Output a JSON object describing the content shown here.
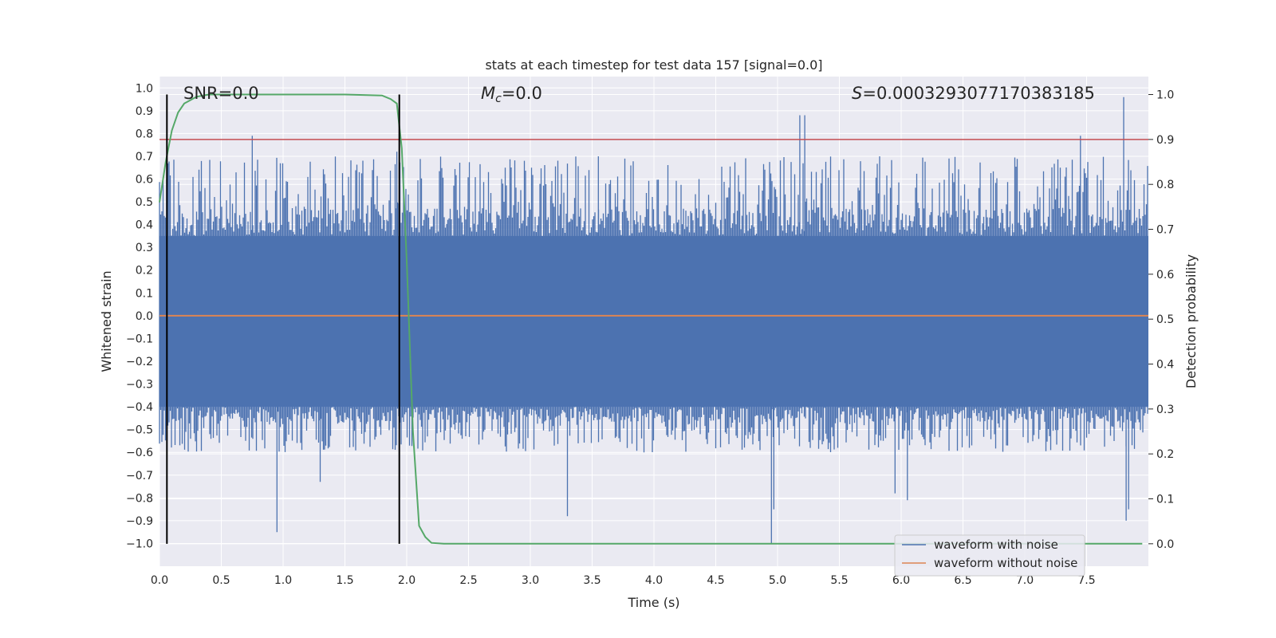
{
  "chart_data": {
    "type": "line",
    "title": "stats at each timestep for test data 157 [signal=0.0]",
    "xlabel": "Time (s)",
    "ylabel": "Whitened strain",
    "y2label": "Detection probability",
    "xlim": [
      0.0,
      8.0
    ],
    "ylim": [
      -1.1,
      1.05
    ],
    "y2lim": [
      -0.05,
      1.04
    ],
    "xticks": [
      "0.0",
      "0.5",
      "1.0",
      "1.5",
      "2.0",
      "2.5",
      "3.0",
      "3.5",
      "4.0",
      "4.5",
      "5.0",
      "5.5",
      "6.0",
      "6.5",
      "7.0",
      "7.5"
    ],
    "yticks": [
      "1.0",
      "0.9",
      "0.8",
      "0.7",
      "0.6",
      "0.5",
      "0.4",
      "0.3",
      "0.2",
      "0.1",
      "0.0",
      "−0.1",
      "−0.2",
      "−0.3",
      "−0.4",
      "−0.5",
      "−0.6",
      "−0.7",
      "−0.8",
      "−0.9",
      "−1.0"
    ],
    "y2ticks": [
      "1.0",
      "0.9",
      "0.8",
      "0.7",
      "0.6",
      "0.5",
      "0.4",
      "0.3",
      "0.2",
      "0.1",
      "0.0"
    ],
    "grid": true,
    "annotations": {
      "snr_label": "SNR=0.0",
      "mc_symbol": "M",
      "mc_sub": "c",
      "mc_value": "=0.0",
      "s_symbol": "S",
      "s_value": "=0.0003293077170383185"
    },
    "vlines": [
      0.06,
      1.94
    ],
    "threshold": 0.9,
    "noisy_waveform": {
      "name": "waveform with noise",
      "color": "#4c72b0",
      "core_range": [
        -0.4,
        0.35
      ],
      "typical_peak_range": [
        -0.6,
        0.7
      ],
      "spikes": [
        {
          "t": 0.95,
          "v": -0.95
        },
        {
          "t": 0.75,
          "v": 0.79
        },
        {
          "t": 1.3,
          "v": -0.73
        },
        {
          "t": 1.92,
          "v": 0.72
        },
        {
          "t": 3.3,
          "v": -0.88
        },
        {
          "t": 3.55,
          "v": 0.7
        },
        {
          "t": 4.95,
          "v": -1.0
        },
        {
          "t": 4.97,
          "v": -0.85
        },
        {
          "t": 5.18,
          "v": 0.88
        },
        {
          "t": 5.22,
          "v": 0.88
        },
        {
          "t": 5.95,
          "v": -0.78
        },
        {
          "t": 6.05,
          "v": -0.81
        },
        {
          "t": 7.45,
          "v": 0.79
        },
        {
          "t": 7.8,
          "v": 0.96
        },
        {
          "t": 7.82,
          "v": -0.9
        },
        {
          "t": 7.84,
          "v": -0.85
        }
      ]
    },
    "clean_waveform": {
      "name": "waveform without noise",
      "color": "#dd8452",
      "value": 0.0
    },
    "detection_probability": {
      "color": "#55a868",
      "x": [
        0.0,
        0.05,
        0.1,
        0.15,
        0.2,
        0.3,
        0.4,
        0.6,
        1.0,
        1.5,
        1.8,
        1.87,
        1.92,
        1.96,
        2.0,
        2.05,
        2.1,
        2.15,
        2.2,
        2.3,
        3.0,
        5.0,
        7.0,
        7.95
      ],
      "y": [
        0.76,
        0.85,
        0.92,
        0.96,
        0.98,
        0.995,
        1.0,
        1.0,
        1.0,
        1.0,
        0.998,
        0.99,
        0.98,
        0.88,
        0.63,
        0.25,
        0.04,
        0.015,
        0.002,
        0.0,
        0.0,
        0.0,
        0.0,
        0.0
      ]
    },
    "legend": {
      "location": "lower-right",
      "entries": [
        "waveform with noise",
        "waveform without noise"
      ]
    }
  }
}
